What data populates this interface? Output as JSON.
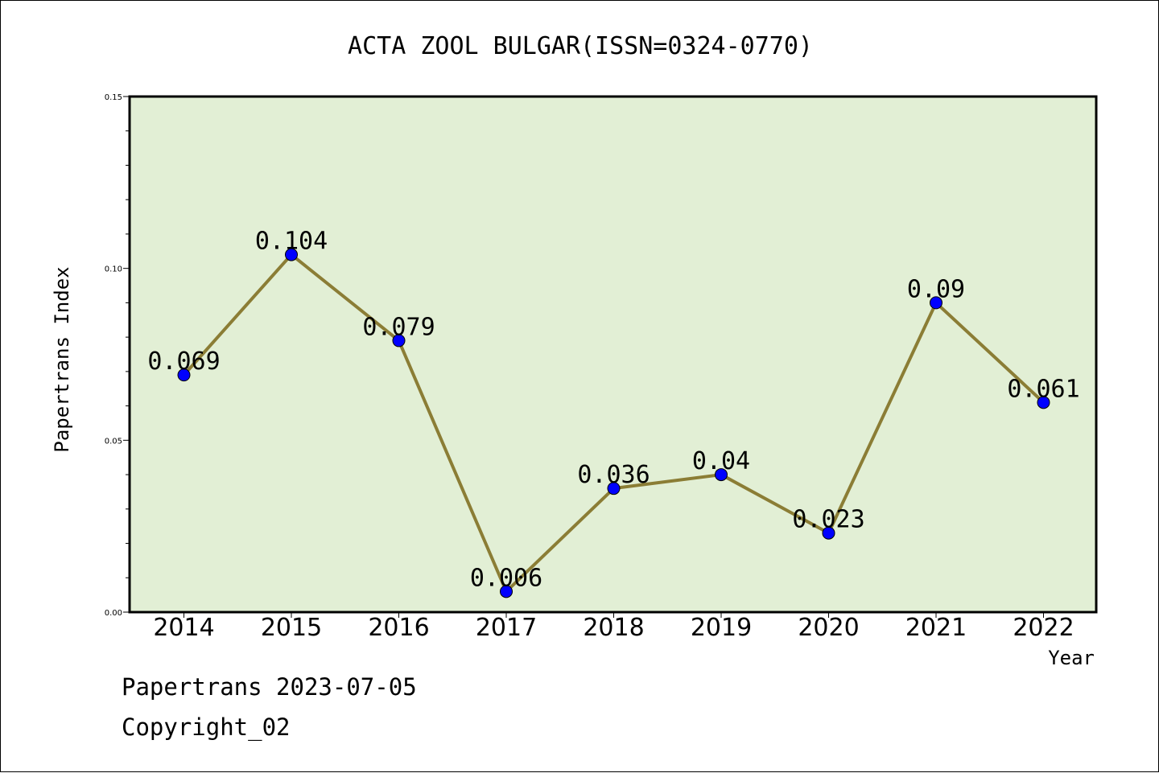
{
  "colors": {
    "plot_background": "#e2efd5",
    "line": "#8b7d35",
    "marker": "#0000ff",
    "axes": "#000000"
  },
  "chart_data": {
    "type": "line",
    "title": "ACTA ZOOL BULGAR(ISSN=0324-0770)",
    "xlabel": "Year",
    "ylabel": "Papertrans Index",
    "categories": [
      "2014",
      "2015",
      "2016",
      "2017",
      "2018",
      "2019",
      "2020",
      "2021",
      "2022"
    ],
    "series": [
      {
        "values": [
          0.069,
          0.104,
          0.079,
          0.006,
          0.036,
          0.04,
          0.023,
          0.09,
          0.061
        ],
        "data_labels": [
          "0.069",
          "0.104",
          "0.079",
          "0.006",
          "0.036",
          "0.04",
          "0.023",
          "0.09",
          "0.061"
        ]
      }
    ],
    "ylim": [
      0,
      0.15
    ],
    "yticks": [
      0,
      0.05,
      0.1,
      0.15
    ],
    "ytick_labels": [
      "0.00",
      "0.05",
      "0.10",
      "0.15"
    ],
    "y_minor_step": 0.01,
    "grid": false,
    "legend": "none"
  },
  "footer": {
    "date_line": "Papertrans 2023-07-05",
    "copyright_line": "Copyright_02"
  }
}
